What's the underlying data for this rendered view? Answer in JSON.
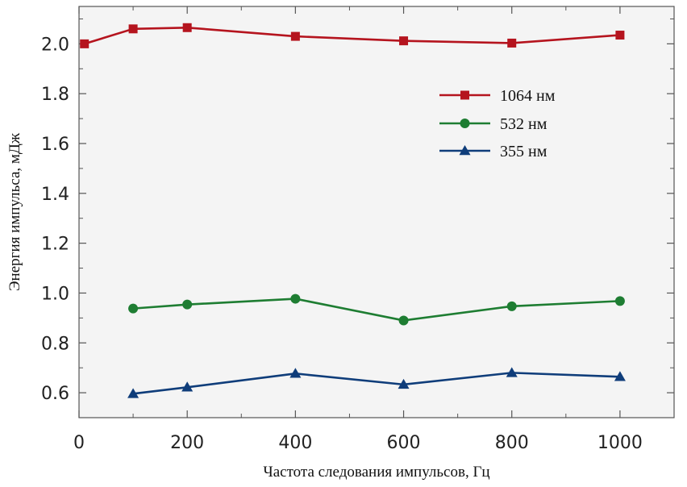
{
  "chart_data": {
    "type": "line",
    "title": "",
    "xlabel": "Частота следования импульсов, Гц",
    "ylabel": "Энергия импульса, мДж",
    "xlim": [
      0,
      1100
    ],
    "ylim": [
      0.5,
      2.15
    ],
    "x_ticks": [
      0,
      200,
      400,
      600,
      800,
      1000
    ],
    "x_tick_labels": [
      "0",
      "200",
      "400",
      "600",
      "800",
      "1000"
    ],
    "y_ticks": [
      0.6,
      0.8,
      1.0,
      1.2,
      1.4,
      1.6,
      1.8,
      2.0
    ],
    "y_tick_labels": [
      "0.6",
      "0.8",
      "1.0",
      "1.2",
      "1.4",
      "1.6",
      "1.8",
      "2.0"
    ],
    "grid": false,
    "legend_position": "upper-right",
    "plot_background": "#f4f4f4",
    "series": [
      {
        "name": "1064 нм",
        "color": "#b5141e",
        "marker": "square",
        "x": [
          10,
          100,
          200,
          400,
          600,
          800,
          1000
        ],
        "y": [
          2.0,
          2.06,
          2.065,
          2.03,
          2.012,
          2.003,
          2.035
        ]
      },
      {
        "name": "532 нм",
        "color": "#1e7d32",
        "marker": "circle",
        "x": [
          100,
          200,
          400,
          600,
          800,
          1000
        ],
        "y": [
          0.938,
          0.954,
          0.977,
          0.89,
          0.947,
          0.968
        ]
      },
      {
        "name": "355 нм",
        "color": "#0f3d7a",
        "marker": "triangle",
        "x": [
          100,
          200,
          400,
          600,
          800,
          1000
        ],
        "y": [
          0.596,
          0.622,
          0.677,
          0.633,
          0.68,
          0.664
        ]
      }
    ]
  }
}
